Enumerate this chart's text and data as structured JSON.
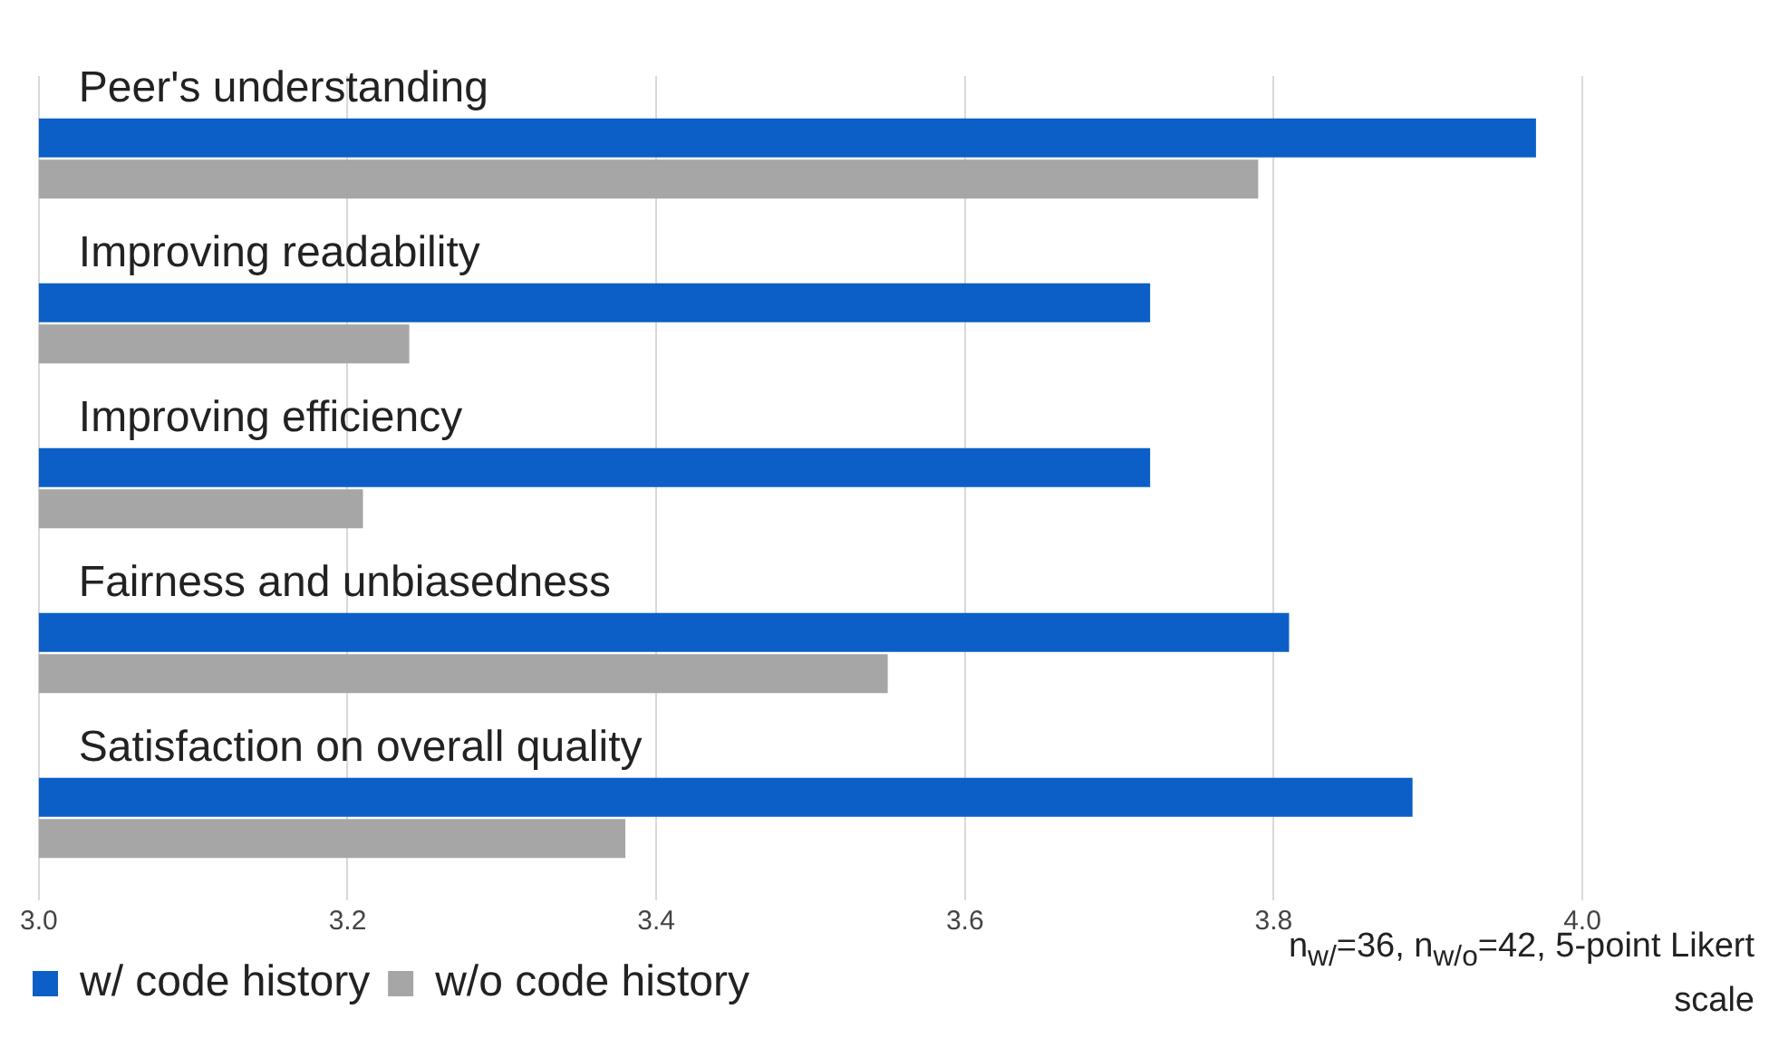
{
  "chart_data": {
    "type": "bar",
    "orientation": "horizontal",
    "categories": [
      "Peer's understanding",
      "Improving readability",
      "Improving efficiency",
      "Fairness and unbiasedness",
      "Satisfaction on overall quality"
    ],
    "series": [
      {
        "name": "w/ code history",
        "color": "#0b5fc6",
        "values": [
          3.97,
          3.72,
          3.72,
          3.81,
          3.89
        ]
      },
      {
        "name": "w/o code history",
        "color": "#a6a6a6",
        "values": [
          3.79,
          3.24,
          3.21,
          3.55,
          3.38
        ]
      }
    ],
    "xlim": [
      3.0,
      4.0
    ],
    "xticks": [
      {
        "value": 3.0,
        "label": "3.0"
      },
      {
        "value": 3.2,
        "label": "3.2"
      },
      {
        "value": 3.4,
        "label": "3.4"
      },
      {
        "value": 3.6,
        "label": "3.6"
      },
      {
        "value": 3.8,
        "label": "3.8"
      },
      {
        "value": 4.0,
        "label": "4.0"
      }
    ],
    "grid": "x",
    "legend": "bottom left",
    "annotations": [
      "n$_{w/}$=36, n$_{w/o}$=42, 5-point Likert scale"
    ]
  }
}
